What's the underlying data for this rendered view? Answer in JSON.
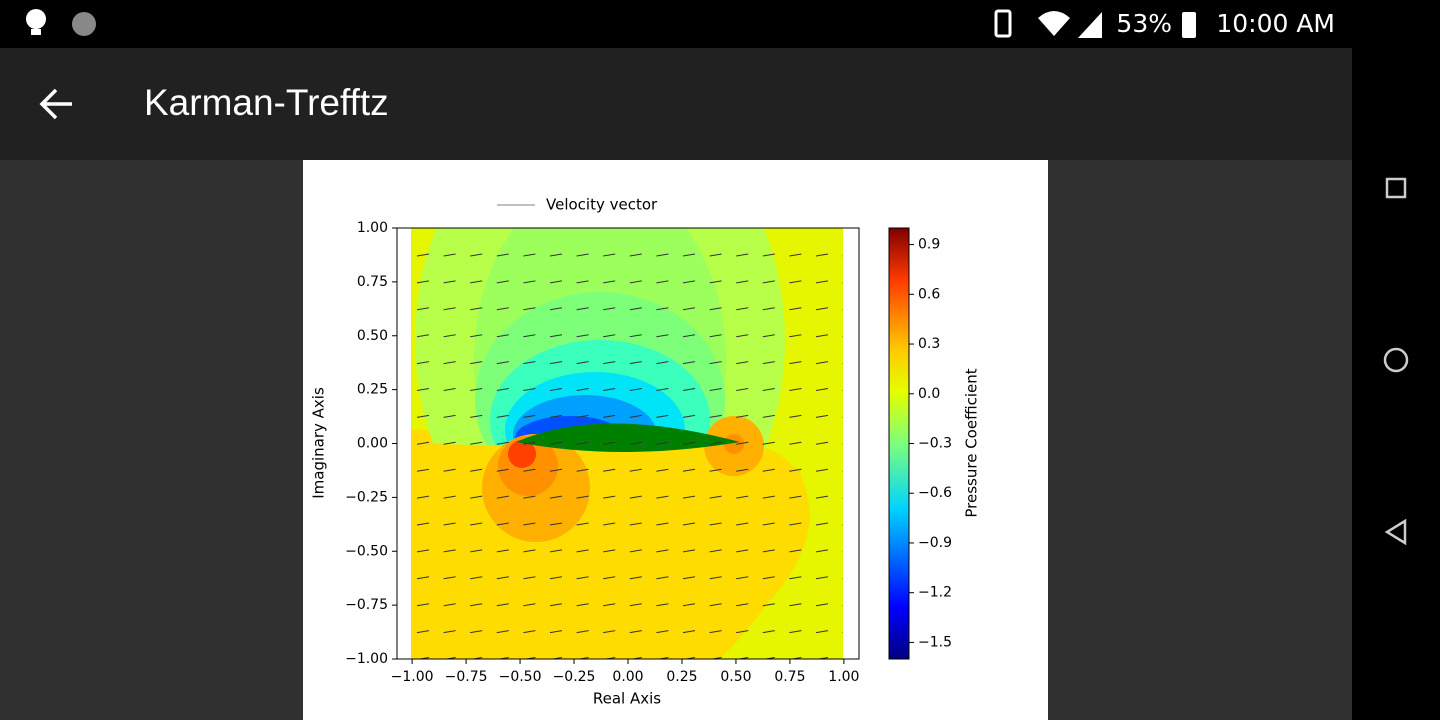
{
  "status_bar": {
    "battery": "53%",
    "time": "10:00 AM"
  },
  "app_bar": {
    "title": "Karman-Trefftz"
  },
  "chart_data": {
    "type": "contour",
    "legend": "Velocity vector",
    "xlabel": "Real Axis",
    "ylabel": "Imaginary Axis",
    "xlim": [
      -1.07,
      1.07
    ],
    "ylim": [
      -1,
      1
    ],
    "xticks": [
      {
        "value": -1,
        "label": "−1.00"
      },
      {
        "value": -0.75,
        "label": "−0.75"
      },
      {
        "value": -0.5,
        "label": "−0.50"
      },
      {
        "value": -0.25,
        "label": "−0.25"
      },
      {
        "value": 0,
        "label": "0.00"
      },
      {
        "value": 0.25,
        "label": "0.25"
      },
      {
        "value": 0.5,
        "label": "0.50"
      },
      {
        "value": 0.75,
        "label": "0.75"
      },
      {
        "value": 1,
        "label": "1.00"
      }
    ],
    "yticks": [
      {
        "value": 1,
        "label": "1.00"
      },
      {
        "value": 0.75,
        "label": "0.75"
      },
      {
        "value": 0.5,
        "label": "0.50"
      },
      {
        "value": 0.25,
        "label": "0.25"
      },
      {
        "value": 0,
        "label": "0.00"
      },
      {
        "value": -0.25,
        "label": "−0.25"
      },
      {
        "value": -0.5,
        "label": "−0.50"
      },
      {
        "value": -0.75,
        "label": "−0.75"
      },
      {
        "value": -1,
        "label": "−1.00"
      }
    ],
    "colorbar": {
      "label": "Pressure Coefficient",
      "lim": [
        -1.6,
        1.0
      ],
      "ticks": [
        0.9,
        0.6,
        0.3,
        {
          "value": 0,
          "label": "0.0"
        },
        {
          "value": -0.3,
          "label": "−0.3"
        },
        {
          "value": -0.6,
          "label": "−0.6"
        },
        {
          "value": -0.9,
          "label": "−0.9"
        },
        {
          "value": -1.2,
          "label": "−1.2"
        },
        {
          "value": -1.5,
          "label": "−1.5"
        }
      ]
    }
  }
}
